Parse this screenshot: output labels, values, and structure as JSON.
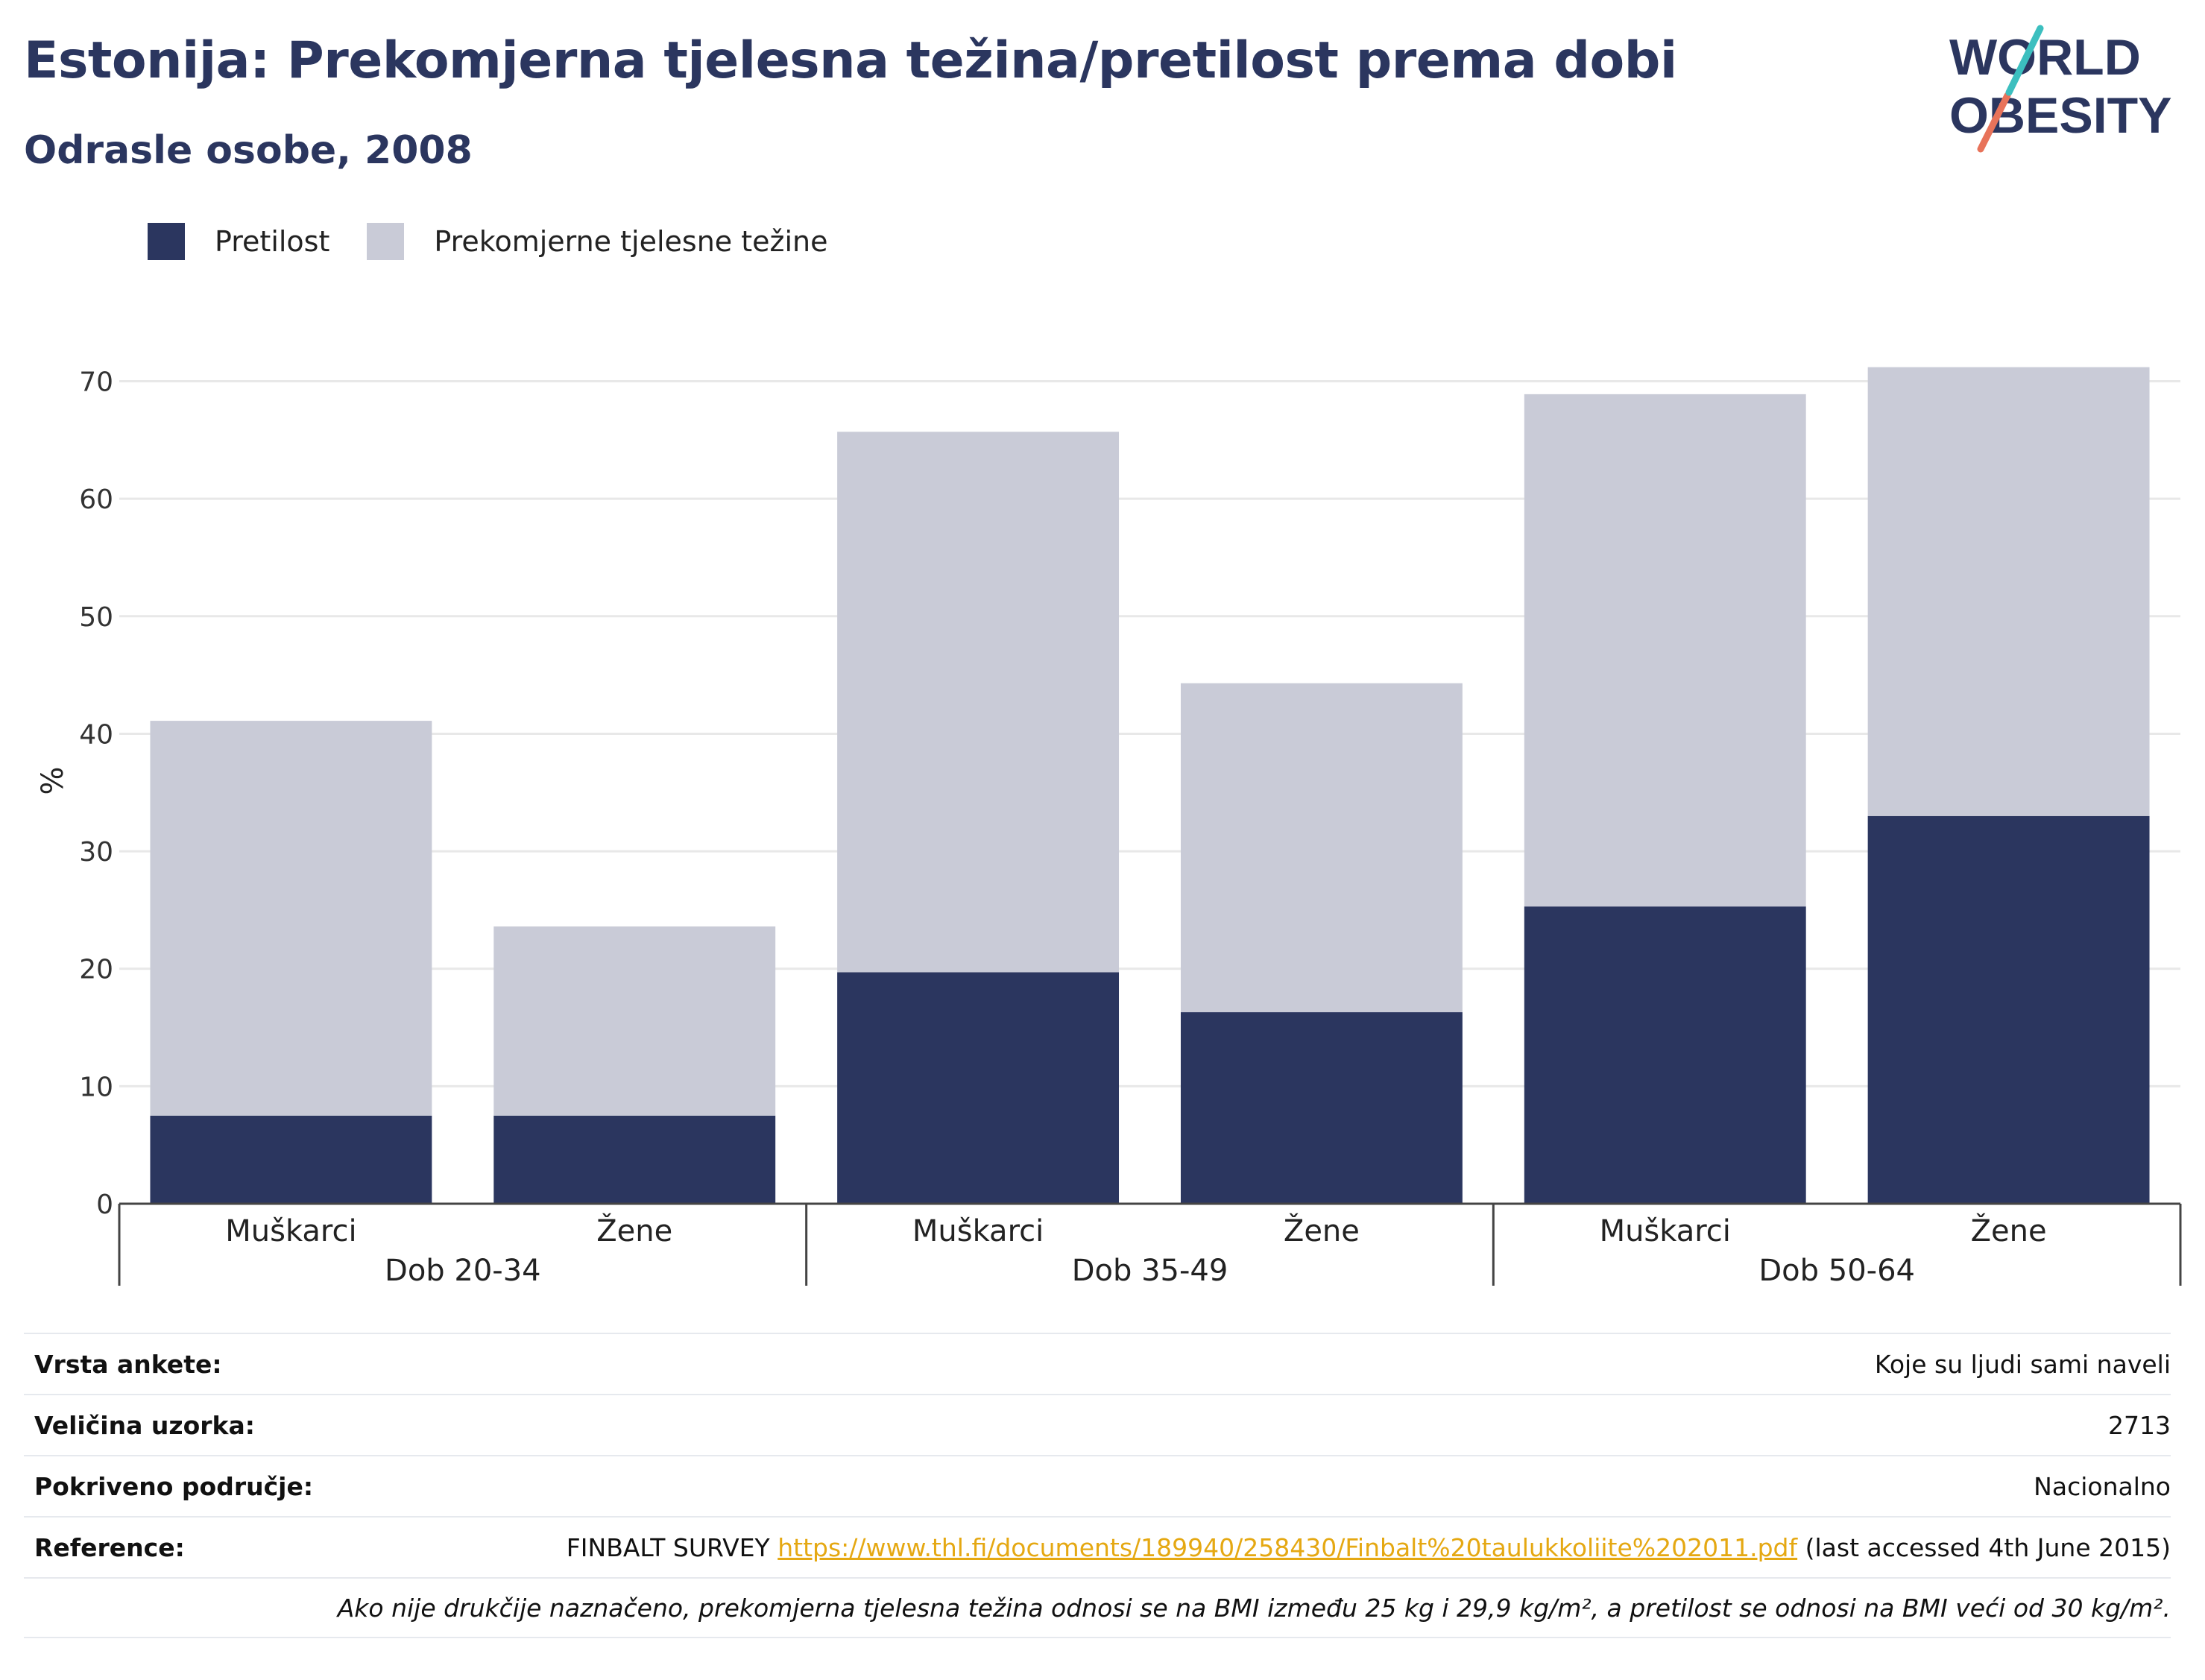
{
  "header": {
    "title": "Estonija: Prekomjerna tjelesna težina/pretilost prema dobi",
    "subtitle": "Odrasle osobe, 2008"
  },
  "logo": {
    "line1": "WORLD",
    "line2": "OBESITY",
    "icon": "world-obesity-logo"
  },
  "chart_data": {
    "type": "bar",
    "stacked": true,
    "groups": [
      "Dob 20-34",
      "Dob 35-49",
      "Dob 50-64"
    ],
    "categories": [
      "Muškarci",
      "Žene",
      "Muškarci",
      "Žene",
      "Muškarci",
      "Žene"
    ],
    "category_group": [
      0,
      0,
      1,
      1,
      2,
      2
    ],
    "series": [
      {
        "name": "Pretilost",
        "color": "#2b365f",
        "values": [
          7.5,
          7.5,
          19.7,
          16.3,
          25.3,
          33.0
        ]
      },
      {
        "name": "Prekomjerne tjelesne težine",
        "color": "#c9cbd7",
        "values": [
          33.6,
          16.1,
          46.0,
          28.0,
          43.6,
          38.2
        ]
      }
    ],
    "ylabel": "%",
    "ylim": [
      0,
      72
    ],
    "yticks": [
      0,
      10,
      20,
      30,
      40,
      50,
      60,
      70
    ],
    "grid": true,
    "legend": "top-left"
  },
  "info": {
    "survey_type_label": "Vrsta ankete:",
    "survey_type_value": "Koje su ljudi sami naveli",
    "sample_size_label": "Veličina uzorka:",
    "sample_size_value": "2713",
    "coverage_label": "Pokriveno područje:",
    "coverage_value": "Nacionalno",
    "reference_label": "Reference:",
    "reference_prefix": "FINBALT SURVEY",
    "reference_link": "https://www.thl.fi/documents/189940/258430/Finbalt%20taulukkoliite%202011.pdf",
    "reference_suffix": "(last accessed 4th June 2015)",
    "note": "Ako nije drukčije naznačeno, prekomjerna tjelesna težina odnosi se na BMI između 25 kg i 29,9 kg/m², a pretilost se odnosi na BMI veći od 30 kg/m²."
  }
}
